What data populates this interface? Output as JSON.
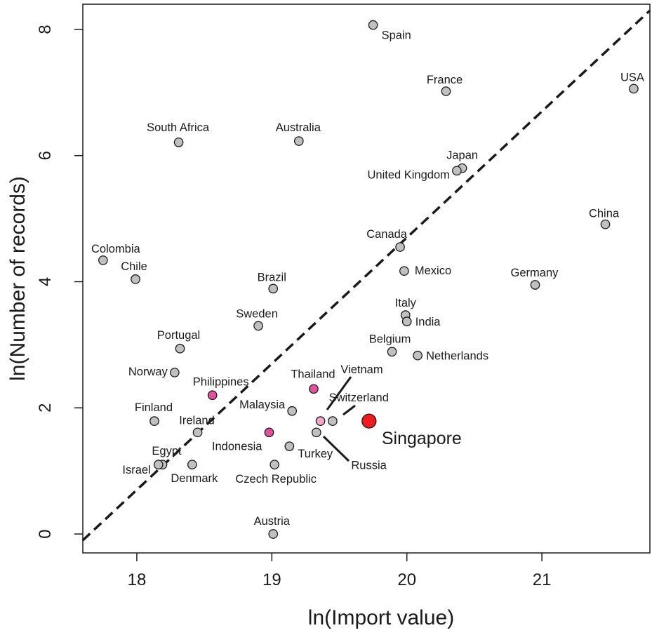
{
  "chart_data": {
    "type": "scatter",
    "xlabel": "ln(Import value)",
    "ylabel": "ln(Number of records)",
    "xlim": [
      17.6,
      21.8
    ],
    "ylim": [
      -0.3,
      8.4
    ],
    "x_ticks": [
      18,
      19,
      20,
      21
    ],
    "y_ticks": [
      0,
      2,
      4,
      6,
      8
    ],
    "grid": false,
    "reference_line": {
      "style": "dashed",
      "slope": 2.0,
      "intercept": -35.3
    },
    "colors": {
      "default": "#c0c0c0",
      "highlight": "#e2529c",
      "focus": "#ee1c1c",
      "light": "#f1a7cb"
    },
    "points": [
      {
        "label": "Spain",
        "x": 19.75,
        "y": 8.07,
        "color": "default"
      },
      {
        "label": "France",
        "x": 20.29,
        "y": 7.02,
        "color": "default"
      },
      {
        "label": "USA",
        "x": 21.68,
        "y": 7.06,
        "color": "default"
      },
      {
        "label": "South Africa",
        "x": 18.31,
        "y": 6.21,
        "color": "default"
      },
      {
        "label": "Australia",
        "x": 19.2,
        "y": 6.23,
        "color": "default"
      },
      {
        "label": "Japan",
        "x": 20.41,
        "y": 5.8,
        "color": "default"
      },
      {
        "label": "United Kingdom",
        "x": 20.37,
        "y": 5.76,
        "color": "default"
      },
      {
        "label": "China",
        "x": 21.47,
        "y": 4.91,
        "color": "default"
      },
      {
        "label": "Canada",
        "x": 19.95,
        "y": 4.55,
        "color": "default"
      },
      {
        "label": "Colombia",
        "x": 17.75,
        "y": 4.34,
        "color": "default"
      },
      {
        "label": "Mexico",
        "x": 19.98,
        "y": 4.17,
        "color": "default"
      },
      {
        "label": "Chile",
        "x": 17.99,
        "y": 4.04,
        "color": "default"
      },
      {
        "label": "Germany",
        "x": 20.95,
        "y": 3.95,
        "color": "default"
      },
      {
        "label": "Brazil",
        "x": 19.01,
        "y": 3.89,
        "color": "default"
      },
      {
        "label": "Italy",
        "x": 19.99,
        "y": 3.47,
        "color": "default"
      },
      {
        "label": "India",
        "x": 20.0,
        "y": 3.37,
        "color": "default"
      },
      {
        "label": "Sweden",
        "x": 18.9,
        "y": 3.3,
        "color": "default"
      },
      {
        "label": "Portugal",
        "x": 18.32,
        "y": 2.94,
        "color": "default"
      },
      {
        "label": "Belgium",
        "x": 19.89,
        "y": 2.89,
        "color": "default"
      },
      {
        "label": "Netherlands",
        "x": 20.08,
        "y": 2.83,
        "color": "default"
      },
      {
        "label": "Norway",
        "x": 18.28,
        "y": 2.56,
        "color": "default"
      },
      {
        "label": "Thailand",
        "x": 19.31,
        "y": 2.3,
        "color": "highlight"
      },
      {
        "label": "Philippines",
        "x": 18.56,
        "y": 2.2,
        "color": "highlight"
      },
      {
        "label": "Malaysia",
        "x": 19.15,
        "y": 1.95,
        "color": "default"
      },
      {
        "label": "Vietnam",
        "x": 19.36,
        "y": 1.79,
        "color": "light"
      },
      {
        "label": "Switzerland",
        "x": 19.45,
        "y": 1.79,
        "color": "default"
      },
      {
        "label": "Singapore",
        "x": 19.72,
        "y": 1.79,
        "color": "focus"
      },
      {
        "label": "Finland",
        "x": 18.13,
        "y": 1.79,
        "color": "default"
      },
      {
        "label": "Ireland",
        "x": 18.45,
        "y": 1.61,
        "color": "default"
      },
      {
        "label": "Indonesia",
        "x": 18.98,
        "y": 1.61,
        "color": "highlight"
      },
      {
        "label": "Russia",
        "x": 19.33,
        "y": 1.61,
        "color": "default"
      },
      {
        "label": "Turkey",
        "x": 19.13,
        "y": 1.39,
        "color": "default"
      },
      {
        "label": "Egypt",
        "x": 18.19,
        "y": 1.1,
        "color": "default"
      },
      {
        "label": "Israel",
        "x": 18.16,
        "y": 1.1,
        "color": "default"
      },
      {
        "label": "Denmark",
        "x": 18.41,
        "y": 1.1,
        "color": "default"
      },
      {
        "label": "Czech Republic",
        "x": 19.02,
        "y": 1.1,
        "color": "default"
      },
      {
        "label": "Austria",
        "x": 19.01,
        "y": 0.0,
        "color": "default"
      }
    ]
  }
}
